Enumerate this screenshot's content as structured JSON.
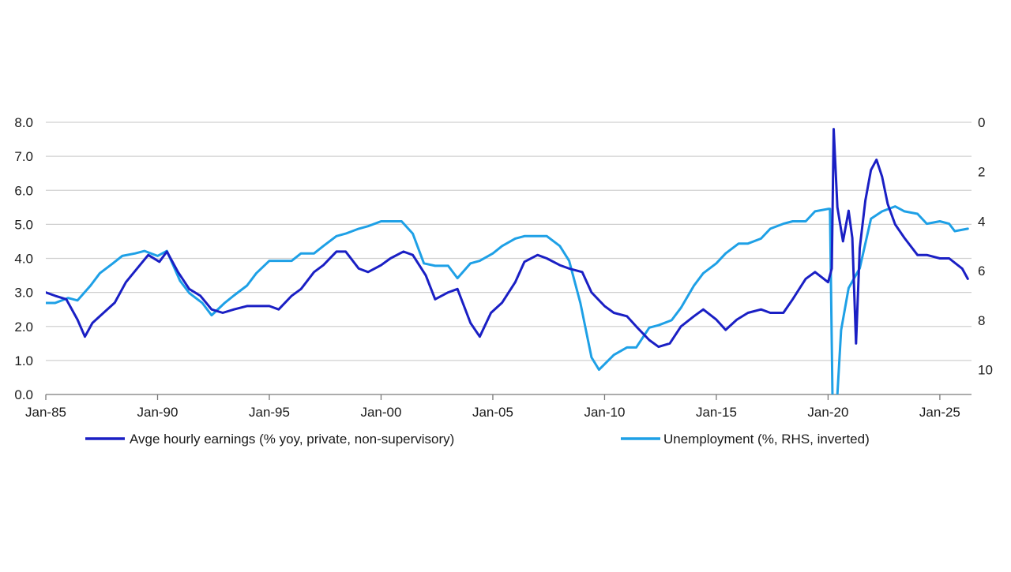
{
  "chart_data": {
    "type": "line",
    "title": "",
    "xlabel": "",
    "ylabel": "",
    "grid": true,
    "legend_placement": "bottom",
    "x_ticks": [
      "Jan-85",
      "Jan-90",
      "Jan-95",
      "Jan-00",
      "Jan-05",
      "Jan-10",
      "Jan-15",
      "Jan-20",
      "Jan-25"
    ],
    "xlim": [
      "1985-01",
      "2026-06"
    ],
    "y_left": {
      "ylim": [
        0,
        8
      ],
      "ticks": [
        "0.0",
        "1.0",
        "2.0",
        "3.0",
        "4.0",
        "5.0",
        "6.0",
        "7.0",
        "8.0"
      ]
    },
    "y_right": {
      "ylim": [
        0,
        11
      ],
      "inverted": true,
      "ticks": [
        "0",
        "2",
        "4",
        "6",
        "8",
        "10"
      ]
    },
    "series": [
      {
        "name": "Avge hourly earnings (% yoy, private, non-supervisory)",
        "axis": "left",
        "color": "#1a1fc4",
        "points": [
          [
            "1985-01",
            3.0
          ],
          [
            "1985-06",
            2.9
          ],
          [
            "1985-12",
            2.8
          ],
          [
            "1986-06",
            2.2
          ],
          [
            "1986-10",
            1.7
          ],
          [
            "1987-02",
            2.1
          ],
          [
            "1987-08",
            2.4
          ],
          [
            "1988-02",
            2.7
          ],
          [
            "1988-08",
            3.3
          ],
          [
            "1989-02",
            3.7
          ],
          [
            "1989-08",
            4.1
          ],
          [
            "1990-02",
            3.9
          ],
          [
            "1990-06",
            4.2
          ],
          [
            "1990-12",
            3.6
          ],
          [
            "1991-06",
            3.1
          ],
          [
            "1991-12",
            2.9
          ],
          [
            "1992-06",
            2.5
          ],
          [
            "1992-12",
            2.4
          ],
          [
            "1993-06",
            2.5
          ],
          [
            "1994-01",
            2.6
          ],
          [
            "1995-01",
            2.6
          ],
          [
            "1995-06",
            2.5
          ],
          [
            "1996-01",
            2.9
          ],
          [
            "1996-06",
            3.1
          ],
          [
            "1997-01",
            3.6
          ],
          [
            "1997-06",
            3.8
          ],
          [
            "1998-01",
            4.2
          ],
          [
            "1998-06",
            4.2
          ],
          [
            "1999-01",
            3.7
          ],
          [
            "1999-06",
            3.6
          ],
          [
            "2000-01",
            3.8
          ],
          [
            "2000-06",
            4.0
          ],
          [
            "2001-01",
            4.2
          ],
          [
            "2001-06",
            4.1
          ],
          [
            "2002-01",
            3.5
          ],
          [
            "2002-06",
            2.8
          ],
          [
            "2003-01",
            3.0
          ],
          [
            "2003-06",
            3.1
          ],
          [
            "2004-01",
            2.1
          ],
          [
            "2004-06",
            1.7
          ],
          [
            "2004-12",
            2.4
          ],
          [
            "2005-06",
            2.7
          ],
          [
            "2006-01",
            3.3
          ],
          [
            "2006-06",
            3.9
          ],
          [
            "2007-01",
            4.1
          ],
          [
            "2007-06",
            4.0
          ],
          [
            "2008-01",
            3.8
          ],
          [
            "2008-06",
            3.7
          ],
          [
            "2009-01",
            3.6
          ],
          [
            "2009-06",
            3.0
          ],
          [
            "2010-01",
            2.6
          ],
          [
            "2010-06",
            2.4
          ],
          [
            "2011-01",
            2.3
          ],
          [
            "2011-06",
            2.0
          ],
          [
            "2012-01",
            1.6
          ],
          [
            "2012-06",
            1.4
          ],
          [
            "2012-12",
            1.5
          ],
          [
            "2013-06",
            2.0
          ],
          [
            "2014-01",
            2.3
          ],
          [
            "2014-06",
            2.5
          ],
          [
            "2015-01",
            2.2
          ],
          [
            "2015-06",
            1.9
          ],
          [
            "2015-12",
            2.2
          ],
          [
            "2016-06",
            2.4
          ],
          [
            "2017-01",
            2.5
          ],
          [
            "2017-06",
            2.4
          ],
          [
            "2018-01",
            2.4
          ],
          [
            "2018-06",
            2.8
          ],
          [
            "2019-01",
            3.4
          ],
          [
            "2019-06",
            3.6
          ],
          [
            "2020-01",
            3.3
          ],
          [
            "2020-03",
            3.7
          ],
          [
            "2020-04",
            7.8
          ],
          [
            "2020-06",
            5.5
          ],
          [
            "2020-09",
            4.5
          ],
          [
            "2020-12",
            5.4
          ],
          [
            "2021-02",
            4.6
          ],
          [
            "2021-04",
            1.5
          ],
          [
            "2021-06",
            4.3
          ],
          [
            "2021-09",
            5.7
          ],
          [
            "2021-12",
            6.6
          ],
          [
            "2022-03",
            6.9
          ],
          [
            "2022-06",
            6.4
          ],
          [
            "2022-09",
            5.6
          ],
          [
            "2023-01",
            5.0
          ],
          [
            "2023-06",
            4.6
          ],
          [
            "2024-01",
            4.1
          ],
          [
            "2024-06",
            4.1
          ],
          [
            "2025-01",
            4.0
          ],
          [
            "2025-06",
            4.0
          ],
          [
            "2026-01",
            3.7
          ],
          [
            "2026-04",
            3.4
          ]
        ]
      },
      {
        "name": "Unemployment (%, RHS, inverted)",
        "axis": "right",
        "color": "#1ea0e6",
        "points": [
          [
            "1985-01",
            7.3
          ],
          [
            "1985-06",
            7.3
          ],
          [
            "1986-01",
            7.1
          ],
          [
            "1986-06",
            7.2
          ],
          [
            "1987-01",
            6.6
          ],
          [
            "1987-06",
            6.1
          ],
          [
            "1988-01",
            5.7
          ],
          [
            "1988-06",
            5.4
          ],
          [
            "1989-01",
            5.3
          ],
          [
            "1989-06",
            5.2
          ],
          [
            "1990-01",
            5.4
          ],
          [
            "1990-06",
            5.2
          ],
          [
            "1991-01",
            6.4
          ],
          [
            "1991-06",
            6.9
          ],
          [
            "1992-01",
            7.3
          ],
          [
            "1992-06",
            7.8
          ],
          [
            "1993-01",
            7.3
          ],
          [
            "1993-06",
            7.0
          ],
          [
            "1994-01",
            6.6
          ],
          [
            "1994-06",
            6.1
          ],
          [
            "1995-01",
            5.6
          ],
          [
            "1995-06",
            5.6
          ],
          [
            "1996-01",
            5.6
          ],
          [
            "1996-06",
            5.3
          ],
          [
            "1997-01",
            5.3
          ],
          [
            "1997-06",
            5.0
          ],
          [
            "1998-01",
            4.6
          ],
          [
            "1998-06",
            4.5
          ],
          [
            "1999-01",
            4.3
          ],
          [
            "1999-06",
            4.2
          ],
          [
            "2000-01",
            4.0
          ],
          [
            "2000-06",
            4.0
          ],
          [
            "2000-12",
            4.0
          ],
          [
            "2001-06",
            4.5
          ],
          [
            "2001-12",
            5.7
          ],
          [
            "2002-06",
            5.8
          ],
          [
            "2003-01",
            5.8
          ],
          [
            "2003-06",
            6.3
          ],
          [
            "2004-01",
            5.7
          ],
          [
            "2004-06",
            5.6
          ],
          [
            "2005-01",
            5.3
          ],
          [
            "2005-06",
            5.0
          ],
          [
            "2006-01",
            4.7
          ],
          [
            "2006-06",
            4.6
          ],
          [
            "2007-01",
            4.6
          ],
          [
            "2007-06",
            4.6
          ],
          [
            "2008-01",
            5.0
          ],
          [
            "2008-06",
            5.6
          ],
          [
            "2008-12",
            7.3
          ],
          [
            "2009-06",
            9.5
          ],
          [
            "2009-10",
            10.0
          ],
          [
            "2010-06",
            9.4
          ],
          [
            "2011-01",
            9.1
          ],
          [
            "2011-06",
            9.1
          ],
          [
            "2012-01",
            8.3
          ],
          [
            "2012-06",
            8.2
          ],
          [
            "2013-01",
            8.0
          ],
          [
            "2013-06",
            7.5
          ],
          [
            "2014-01",
            6.6
          ],
          [
            "2014-06",
            6.1
          ],
          [
            "2015-01",
            5.7
          ],
          [
            "2015-06",
            5.3
          ],
          [
            "2016-01",
            4.9
          ],
          [
            "2016-06",
            4.9
          ],
          [
            "2017-01",
            4.7
          ],
          [
            "2017-06",
            4.3
          ],
          [
            "2018-01",
            4.1
          ],
          [
            "2018-06",
            4.0
          ],
          [
            "2019-01",
            4.0
          ],
          [
            "2019-06",
            3.6
          ],
          [
            "2020-01",
            3.5
          ],
          [
            "2020-02",
            3.5
          ],
          [
            "2020-04",
            14.7
          ],
          [
            "2020-05",
            13.2
          ],
          [
            "2020-06",
            11.0
          ],
          [
            "2020-08",
            8.4
          ],
          [
            "2020-12",
            6.7
          ],
          [
            "2021-06",
            5.9
          ],
          [
            "2021-12",
            3.9
          ],
          [
            "2022-06",
            3.6
          ],
          [
            "2023-01",
            3.4
          ],
          [
            "2023-06",
            3.6
          ],
          [
            "2024-01",
            3.7
          ],
          [
            "2024-06",
            4.1
          ],
          [
            "2025-01",
            4.0
          ],
          [
            "2025-06",
            4.1
          ],
          [
            "2025-09",
            4.4
          ],
          [
            "2026-04",
            4.3
          ]
        ]
      }
    ]
  }
}
